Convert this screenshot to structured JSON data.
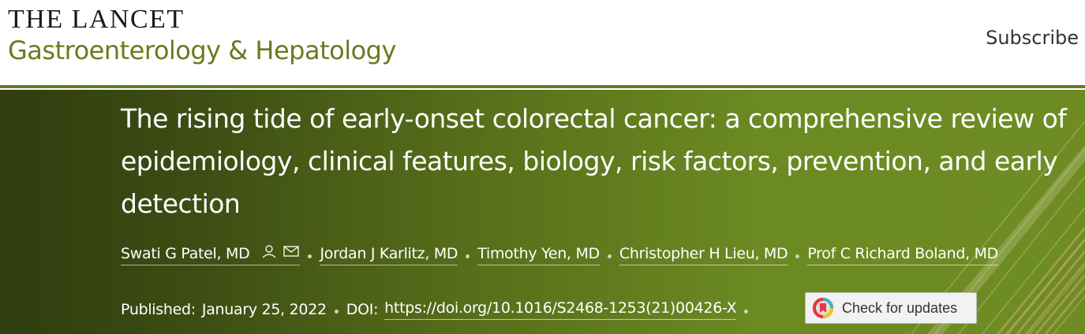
{
  "header": {
    "journal_brand": "THE LANCET",
    "journal_name": "Gastroenterology & Hepatology",
    "subscribe_label": "Subscribe",
    "accent_color": "#6b7a1f"
  },
  "article": {
    "title": "The rising tide of early-onset colorectal cancer: a comprehensive review of epidemiology, clinical features, biology, risk factors, prevention, and early detection",
    "authors": [
      "Swati G Patel, MD",
      "Jordan J Karlitz, MD",
      "Timothy Yen, MD",
      "Christopher H Lieu, MD",
      "Prof C Richard Boland, MD"
    ],
    "author_icons": [
      "person-icon",
      "envelope-icon"
    ],
    "published_label": "Published:",
    "published_date": "January 25, 2022",
    "doi_label": "DOI:",
    "doi_url": "https://doi.org/10.1016/S2468-1253(21)00426-X",
    "check_updates_label": "Check for updates"
  }
}
